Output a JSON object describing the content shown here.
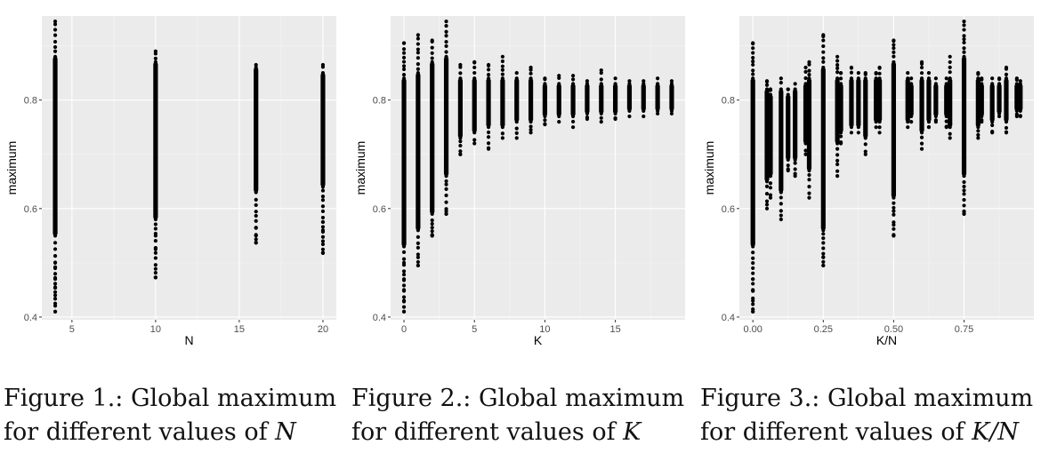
{
  "colors": {
    "panel": "#ebebeb",
    "grid_major": "#ffffff",
    "grid_minor": "#f5f5f5",
    "point": "#000000"
  },
  "chart_data": [
    {
      "type": "scatter",
      "xlabel": "N",
      "ylabel": "maximum",
      "xlim": [
        3.2,
        20.8
      ],
      "ylim": [
        0.395,
        0.955
      ],
      "x_ticks": [
        5,
        10,
        15,
        20
      ],
      "x_tick_labels": [
        "5",
        "10",
        "15",
        "20"
      ],
      "y_ticks": [
        0.4,
        0.6,
        0.8
      ],
      "y_tick_labels": [
        "0.4",
        "0.6",
        "0.8"
      ],
      "grid": true,
      "columns": [
        {
          "x": 4,
          "y_min": 0.41,
          "y_max": 0.945,
          "dense_min": 0.55,
          "dense_max": 0.88,
          "outliers": [
            0.41,
            0.425,
            0.44,
            0.455,
            0.47,
            0.49,
            0.5
          ]
        },
        {
          "x": 10,
          "y_min": 0.473,
          "y_max": 0.89,
          "dense_min": 0.58,
          "dense_max": 0.87,
          "outliers": [
            0.473,
            0.525,
            0.55
          ]
        },
        {
          "x": 16,
          "y_min": 0.537,
          "y_max": 0.865,
          "dense_min": 0.63,
          "dense_max": 0.86,
          "outliers": [
            0.537,
            0.55,
            0.565
          ]
        },
        {
          "x": 20,
          "y_min": 0.518,
          "y_max": 0.865,
          "dense_min": 0.64,
          "dense_max": 0.85,
          "outliers": [
            0.518,
            0.54,
            0.56,
            0.575
          ]
        }
      ]
    },
    {
      "type": "scatter",
      "xlabel": "K",
      "ylabel": "maximum",
      "xlim": [
        -0.95,
        19.95
      ],
      "ylim": [
        0.395,
        0.955
      ],
      "x_ticks": [
        0,
        5,
        10,
        15
      ],
      "x_tick_labels": [
        "0",
        "5",
        "10",
        "15"
      ],
      "y_ticks": [
        0.4,
        0.6,
        0.8
      ],
      "y_tick_labels": [
        "0.4",
        "0.6",
        "0.8"
      ],
      "grid": true,
      "columns": [
        {
          "x": 0,
          "y_min": 0.41,
          "y_max": 0.905,
          "dense_min": 0.53,
          "dense_max": 0.84,
          "outliers": [
            0.41,
            0.43,
            0.45,
            0.47,
            0.5
          ]
        },
        {
          "x": 1,
          "y_min": 0.495,
          "y_max": 0.92,
          "dense_min": 0.56,
          "dense_max": 0.85,
          "outliers": [
            0.495,
            0.51
          ]
        },
        {
          "x": 2,
          "y_min": 0.55,
          "y_max": 0.91,
          "dense_min": 0.59,
          "dense_max": 0.87,
          "outliers": [
            0.55,
            0.565
          ]
        },
        {
          "x": 3,
          "y_min": 0.59,
          "y_max": 0.945,
          "dense_min": 0.66,
          "dense_max": 0.88,
          "outliers": [
            0.59,
            0.595
          ]
        },
        {
          "x": 4,
          "y_min": 0.7,
          "y_max": 0.865,
          "dense_min": 0.73,
          "dense_max": 0.84,
          "outliers": [
            0.7
          ]
        },
        {
          "x": 5,
          "y_min": 0.72,
          "y_max": 0.87,
          "dense_min": 0.74,
          "dense_max": 0.84,
          "outliers": []
        },
        {
          "x": 6,
          "y_min": 0.71,
          "y_max": 0.865,
          "dense_min": 0.75,
          "dense_max": 0.84,
          "outliers": []
        },
        {
          "x": 7,
          "y_min": 0.73,
          "y_max": 0.88,
          "dense_min": 0.75,
          "dense_max": 0.84,
          "outliers": []
        },
        {
          "x": 8,
          "y_min": 0.73,
          "y_max": 0.85,
          "dense_min": 0.76,
          "dense_max": 0.84,
          "outliers": []
        },
        {
          "x": 9,
          "y_min": 0.74,
          "y_max": 0.86,
          "dense_min": 0.76,
          "dense_max": 0.84,
          "outliers": []
        },
        {
          "x": 10,
          "y_min": 0.755,
          "y_max": 0.84,
          "dense_min": 0.77,
          "dense_max": 0.83,
          "outliers": []
        },
        {
          "x": 11,
          "y_min": 0.76,
          "y_max": 0.845,
          "dense_min": 0.77,
          "dense_max": 0.83,
          "outliers": []
        },
        {
          "x": 12,
          "y_min": 0.75,
          "y_max": 0.845,
          "dense_min": 0.77,
          "dense_max": 0.83,
          "outliers": []
        },
        {
          "x": 13,
          "y_min": 0.765,
          "y_max": 0.835,
          "dense_min": 0.775,
          "dense_max": 0.83,
          "outliers": []
        },
        {
          "x": 14,
          "y_min": 0.76,
          "y_max": 0.855,
          "dense_min": 0.775,
          "dense_max": 0.83,
          "outliers": []
        },
        {
          "x": 15,
          "y_min": 0.765,
          "y_max": 0.84,
          "dense_min": 0.775,
          "dense_max": 0.83,
          "outliers": []
        },
        {
          "x": 16,
          "y_min": 0.77,
          "y_max": 0.835,
          "dense_min": 0.78,
          "dense_max": 0.83,
          "outliers": []
        },
        {
          "x": 17,
          "y_min": 0.77,
          "y_max": 0.835,
          "dense_min": 0.78,
          "dense_max": 0.83,
          "outliers": []
        },
        {
          "x": 18,
          "y_min": 0.775,
          "y_max": 0.84,
          "dense_min": 0.78,
          "dense_max": 0.83,
          "outliers": []
        },
        {
          "x": 19,
          "y_min": 0.775,
          "y_max": 0.835,
          "dense_min": 0.78,
          "dense_max": 0.83,
          "outliers": []
        }
      ]
    },
    {
      "type": "scatter",
      "xlabel": "K/N",
      "ylabel": "maximum",
      "xlim": [
        -0.048,
        0.998
      ],
      "ylim": [
        0.395,
        0.955
      ],
      "x_ticks": [
        0,
        0.25,
        0.5,
        0.75
      ],
      "x_tick_labels": [
        "0.00",
        "0.25",
        "0.50",
        "0.75"
      ],
      "y_ticks": [
        0.4,
        0.6,
        0.8
      ],
      "y_tick_labels": [
        "0.4",
        "0.6",
        "0.8"
      ],
      "grid": true,
      "columns": [
        {
          "x": 0.0,
          "y_min": 0.41,
          "y_max": 0.905,
          "dense_min": 0.53,
          "dense_max": 0.84,
          "outliers": [
            0.41,
            0.43,
            0.45,
            0.47
          ]
        },
        {
          "x": 0.05,
          "y_min": 0.6,
          "y_max": 0.835,
          "dense_min": 0.65,
          "dense_max": 0.82,
          "outliers": []
        },
        {
          "x": 0.0625,
          "y_min": 0.62,
          "y_max": 0.82,
          "dense_min": 0.66,
          "dense_max": 0.81,
          "outliers": []
        },
        {
          "x": 0.1,
          "y_min": 0.58,
          "y_max": 0.84,
          "dense_min": 0.63,
          "dense_max": 0.82,
          "outliers": []
        },
        {
          "x": 0.125,
          "y_min": 0.67,
          "y_max": 0.82,
          "dense_min": 0.69,
          "dense_max": 0.81,
          "outliers": []
        },
        {
          "x": 0.15,
          "y_min": 0.66,
          "y_max": 0.83,
          "dense_min": 0.69,
          "dense_max": 0.82,
          "outliers": []
        },
        {
          "x": 0.1875,
          "y_min": 0.7,
          "y_max": 0.86,
          "dense_min": 0.72,
          "dense_max": 0.83,
          "outliers": []
        },
        {
          "x": 0.2,
          "y_min": 0.62,
          "y_max": 0.87,
          "dense_min": 0.67,
          "dense_max": 0.84,
          "outliers": []
        },
        {
          "x": 0.25,
          "y_min": 0.495,
          "y_max": 0.92,
          "dense_min": 0.56,
          "dense_max": 0.86,
          "outliers": [
            0.495,
            0.51
          ]
        },
        {
          "x": 0.3,
          "y_min": 0.66,
          "y_max": 0.88,
          "dense_min": 0.72,
          "dense_max": 0.84,
          "outliers": []
        },
        {
          "x": 0.3125,
          "y_min": 0.72,
          "y_max": 0.85,
          "dense_min": 0.74,
          "dense_max": 0.83,
          "outliers": []
        },
        {
          "x": 0.35,
          "y_min": 0.74,
          "y_max": 0.86,
          "dense_min": 0.75,
          "dense_max": 0.84,
          "outliers": []
        },
        {
          "x": 0.375,
          "y_min": 0.74,
          "y_max": 0.85,
          "dense_min": 0.75,
          "dense_max": 0.84,
          "outliers": []
        },
        {
          "x": 0.4,
          "y_min": 0.7,
          "y_max": 0.85,
          "dense_min": 0.73,
          "dense_max": 0.84,
          "outliers": []
        },
        {
          "x": 0.4375,
          "y_min": 0.75,
          "y_max": 0.85,
          "dense_min": 0.76,
          "dense_max": 0.84,
          "outliers": []
        },
        {
          "x": 0.45,
          "y_min": 0.74,
          "y_max": 0.86,
          "dense_min": 0.76,
          "dense_max": 0.84,
          "outliers": []
        },
        {
          "x": 0.5,
          "y_min": 0.55,
          "y_max": 0.91,
          "dense_min": 0.62,
          "dense_max": 0.87,
          "outliers": [
            0.55,
            0.57
          ]
        },
        {
          "x": 0.55,
          "y_min": 0.75,
          "y_max": 0.85,
          "dense_min": 0.76,
          "dense_max": 0.84,
          "outliers": []
        },
        {
          "x": 0.5625,
          "y_min": 0.76,
          "y_max": 0.84,
          "dense_min": 0.77,
          "dense_max": 0.83,
          "outliers": []
        },
        {
          "x": 0.6,
          "y_min": 0.71,
          "y_max": 0.87,
          "dense_min": 0.74,
          "dense_max": 0.84,
          "outliers": []
        },
        {
          "x": 0.625,
          "y_min": 0.75,
          "y_max": 0.85,
          "dense_min": 0.76,
          "dense_max": 0.84,
          "outliers": []
        },
        {
          "x": 0.65,
          "y_min": 0.76,
          "y_max": 0.84,
          "dense_min": 0.77,
          "dense_max": 0.83,
          "outliers": []
        },
        {
          "x": 0.6875,
          "y_min": 0.75,
          "y_max": 0.84,
          "dense_min": 0.77,
          "dense_max": 0.83,
          "outliers": []
        },
        {
          "x": 0.7,
          "y_min": 0.73,
          "y_max": 0.88,
          "dense_min": 0.75,
          "dense_max": 0.84,
          "outliers": []
        },
        {
          "x": 0.75,
          "y_min": 0.59,
          "y_max": 0.945,
          "dense_min": 0.66,
          "dense_max": 0.88,
          "outliers": [
            0.59,
            0.595
          ]
        },
        {
          "x": 0.8,
          "y_min": 0.73,
          "y_max": 0.85,
          "dense_min": 0.75,
          "dense_max": 0.84,
          "outliers": []
        },
        {
          "x": 0.8125,
          "y_min": 0.76,
          "y_max": 0.84,
          "dense_min": 0.77,
          "dense_max": 0.83,
          "outliers": []
        },
        {
          "x": 0.85,
          "y_min": 0.74,
          "y_max": 0.84,
          "dense_min": 0.76,
          "dense_max": 0.83,
          "outliers": []
        },
        {
          "x": 0.875,
          "y_min": 0.77,
          "y_max": 0.84,
          "dense_min": 0.775,
          "dense_max": 0.83,
          "outliers": []
        },
        {
          "x": 0.9,
          "y_min": 0.74,
          "y_max": 0.86,
          "dense_min": 0.76,
          "dense_max": 0.84,
          "outliers": []
        },
        {
          "x": 0.9375,
          "y_min": 0.77,
          "y_max": 0.84,
          "dense_min": 0.78,
          "dense_max": 0.83,
          "outliers": []
        },
        {
          "x": 0.95,
          "y_min": 0.77,
          "y_max": 0.835,
          "dense_min": 0.78,
          "dense_max": 0.83,
          "outliers": []
        }
      ]
    }
  ],
  "captions": [
    {
      "line1": "Figure 1.: Global maximum",
      "line2_text": "for different values of ",
      "line2_math": "N"
    },
    {
      "line1": "Figure 2.: Global maximum",
      "line2_text": "for different values of ",
      "line2_math": "K"
    },
    {
      "line1": "Figure 3.: Global maximum",
      "line2_text": "for different values of ",
      "line2_math": "K/N"
    }
  ]
}
